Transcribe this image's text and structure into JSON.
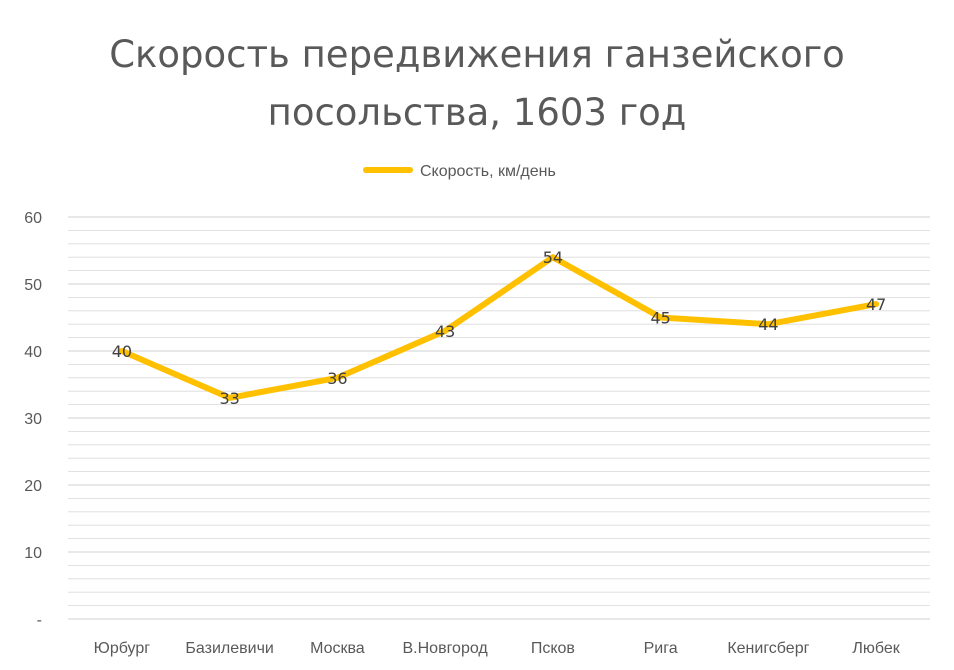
{
  "chart_data": {
    "type": "line",
    "title_lines": [
      "Скорость передвижения ганзейского",
      "посольства, 1603 год"
    ],
    "categories": [
      "Юрбург",
      "Базилевичи",
      "Москва",
      "В.Новгород",
      "Псков",
      "Рига",
      "Кенигсберг",
      "Любек"
    ],
    "series": [
      {
        "name": "Скорость, км/день",
        "values": [
          40,
          33,
          36,
          43,
          54,
          45,
          44,
          47
        ],
        "color": "#FFC000"
      }
    ],
    "y_ticks": [
      {
        "value": 0,
        "label": "-"
      },
      {
        "value": 10,
        "label": "10"
      },
      {
        "value": 20,
        "label": "20"
      },
      {
        "value": 30,
        "label": "30"
      },
      {
        "value": 40,
        "label": "40"
      },
      {
        "value": 50,
        "label": "50"
      },
      {
        "value": 60,
        "label": "60"
      }
    ],
    "ylim": [
      0,
      60
    ],
    "minor_grid_step": 2,
    "grid": true,
    "legend_position": "top",
    "data_labels": true,
    "gridline_color": "#D9D9D9"
  }
}
